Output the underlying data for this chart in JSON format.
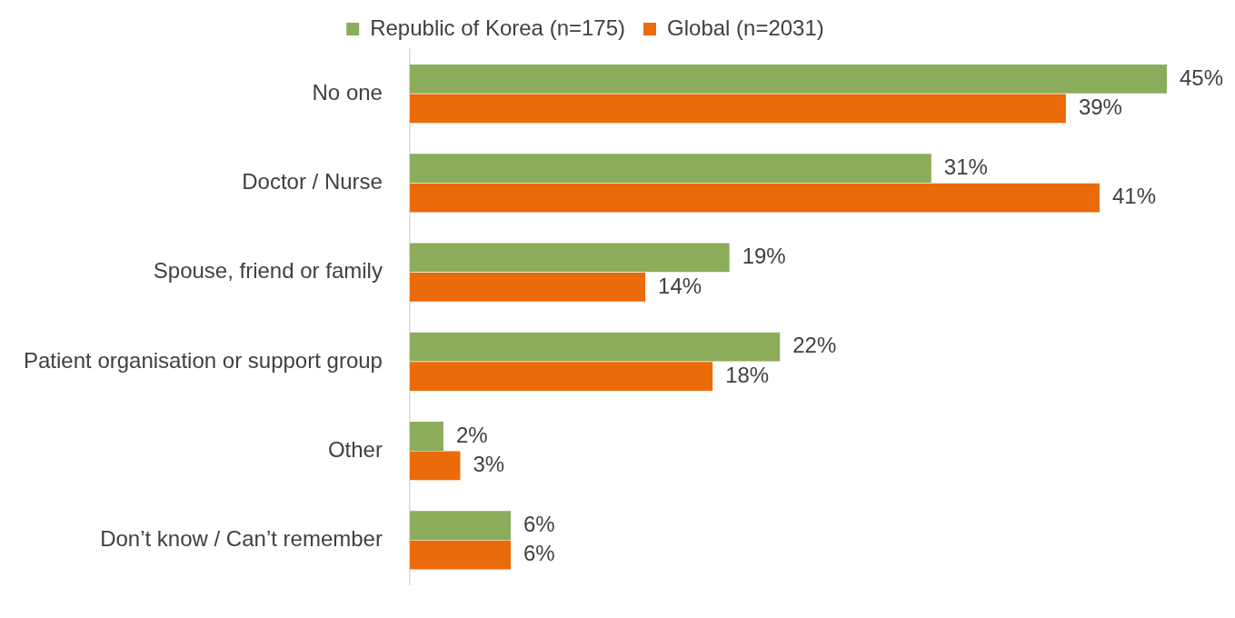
{
  "chart_data": {
    "type": "bar",
    "orientation": "horizontal",
    "categories": [
      "No one",
      "Doctor / Nurse",
      "Spouse, friend or family",
      "Patient organisation or support group",
      "Other",
      "Don’t know / Can’t remember"
    ],
    "series": [
      {
        "name": "Republic of Korea (n=175)",
        "color": "#8bac5b",
        "values": [
          45,
          31,
          19,
          22,
          2,
          6
        ],
        "value_labels": [
          "45%",
          "31%",
          "19%",
          "22%",
          "2%",
          "6%"
        ]
      },
      {
        "name": "Global (n=2031)",
        "color": "#eb6a0a",
        "values": [
          39,
          41,
          14,
          18,
          3,
          6
        ],
        "value_labels": [
          "39%",
          "41%",
          "14%",
          "18%",
          "3%",
          "6%"
        ]
      }
    ],
    "legend": "top",
    "grid": false
  }
}
